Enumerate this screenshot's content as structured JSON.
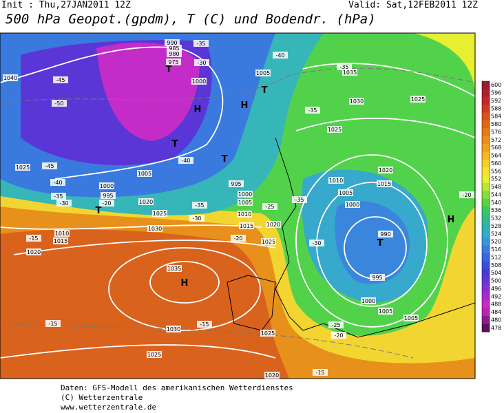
{
  "header": {
    "init": "Init : Thu,27JAN2011 12Z",
    "valid": "Valid: Sat,12FEB2011 12Z",
    "title": "500 hPa Geopot.(gpdm), T (C) und Bodendr. (hPa)"
  },
  "colorbar": {
    "levels": [
      600,
      596,
      592,
      588,
      584,
      580,
      576,
      572,
      568,
      564,
      560,
      556,
      552,
      548,
      544,
      540,
      536,
      532,
      528,
      524,
      520,
      516,
      512,
      508,
      504,
      500,
      496,
      492,
      488,
      484,
      480,
      478
    ],
    "colors": [
      "#9b1b30",
      "#b01e2e",
      "#c4262a",
      "#d13a22",
      "#d9521c",
      "#e06618",
      "#e57a18",
      "#eb8e1b",
      "#f0a21e",
      "#f5b724",
      "#f8cc2a",
      "#f7e030",
      "#e6ef30",
      "#b7e838",
      "#86dd3c",
      "#5ad244",
      "#3cc660",
      "#33bd86",
      "#32b3aa",
      "#36a9cc",
      "#3a95dc",
      "#3a7de0",
      "#3965e0",
      "#3a4ede",
      "#4a3ad8",
      "#6a33d4",
      "#8a2ed0",
      "#a82ccb",
      "#c42cc4",
      "#b826b0",
      "#8a1c8a",
      "#5c1060"
    ]
  },
  "map_labels": [
    "H",
    "H",
    "H",
    "H",
    "T",
    "T",
    "T",
    "T",
    "T",
    "T",
    "1035",
    "1030",
    "1025",
    "1020",
    "1015",
    "1010",
    "1005",
    "1000",
    "990",
    "985",
    "980",
    "975",
    "995",
    "1000",
    "1005",
    "1020",
    "1025",
    "1030",
    "1035",
    "1030",
    "1025",
    "1020",
    "1015",
    "1010",
    "1005",
    "1000",
    "990",
    "995",
    "1000",
    "1005",
    "1005",
    "1025",
    "1025",
    "1020",
    "1040",
    "1025",
    "995",
    "1000",
    "1005",
    "1010",
    "1015",
    "1020",
    "1025",
    "-35",
    "-30",
    "-40",
    "-35",
    "-45",
    "-50",
    "-45",
    "-40",
    "-35",
    "-30",
    "-35",
    "-30",
    "-25",
    "-35",
    "-20",
    "-15",
    "-15",
    "-15",
    "-15",
    "-20",
    "-25",
    "-35",
    "-30",
    "-40",
    "-20",
    "-20"
  ],
  "footer": [
    "Daten: GFS-Modell des amerikanischen Wetterdienstes",
    "(C) Wetterzentrale",
    "www.wetterzentrale.de"
  ]
}
